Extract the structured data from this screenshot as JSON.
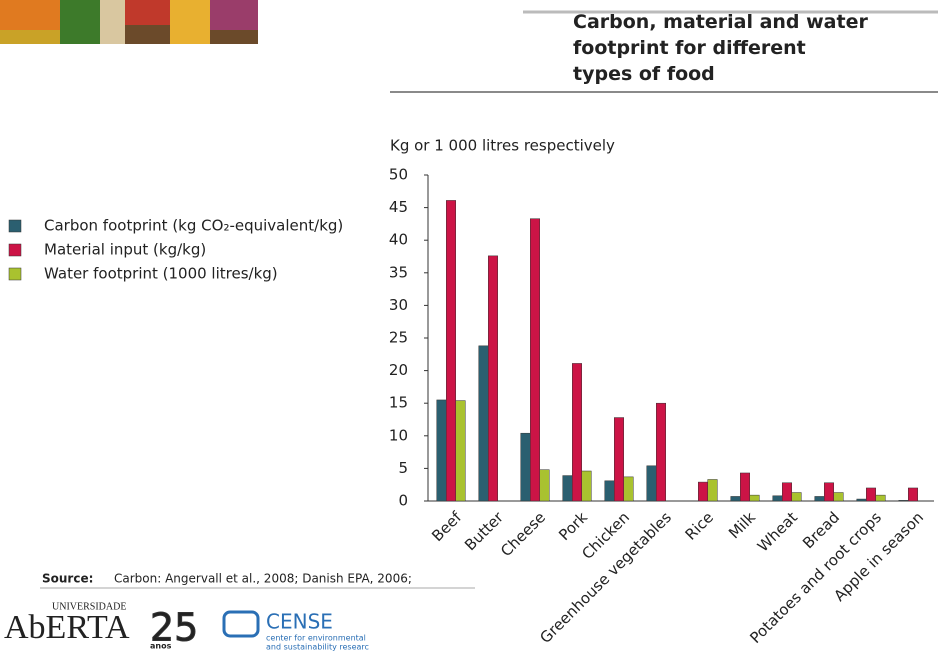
{
  "chart_data": {
    "type": "bar",
    "title": "Carbon, material and water footprint for different types of food",
    "y_label": "Kg or 1 000 litres respectively",
    "categories": [
      "Beef",
      "Butter",
      "Cheese",
      "Pork",
      "Chicken",
      "Greenhouse vegetables",
      "Rice",
      "Milk",
      "Wheat",
      "Bread",
      "Potatoes and root crops",
      "Apple in season"
    ],
    "series": [
      {
        "name": "Carbon footprint (kg CO₂-equivalent/kg)",
        "color": "#2b5f70",
        "values": [
          15.5,
          23.8,
          10.4,
          3.9,
          3.1,
          5.4,
          null,
          0.7,
          0.8,
          0.7,
          0.3,
          0.1
        ]
      },
      {
        "name": "Material input (kg/kg)",
        "color": "#cc1446",
        "values": [
          46.1,
          37.6,
          43.3,
          21.1,
          12.8,
          15.0,
          2.9,
          4.3,
          2.8,
          2.8,
          2.0,
          2.0
        ]
      },
      {
        "name": "Water footprint (1000 litres/kg)",
        "color": "#a9c22f",
        "values": [
          15.4,
          null,
          4.8,
          4.6,
          3.7,
          null,
          3.3,
          0.9,
          1.3,
          1.3,
          0.9,
          null
        ]
      }
    ],
    "ylim": [
      0,
      50
    ],
    "yticks": [
      0,
      5,
      10,
      15,
      20,
      25,
      30,
      35,
      40,
      45,
      50
    ],
    "grid": false
  },
  "slide": {
    "source_label": "Source:",
    "source_text": "Carbon: Angervall et al., 2008; Danish EPA, 2006;",
    "logo_university": "UNIVERSIDADE",
    "logo_name": "AbERTA",
    "logo_years": "25",
    "logo_years_word": "anos",
    "logo_cense": "CENSE",
    "logo_cense_line1": "center for environmental",
    "logo_cense_line2": "and sustainability researc"
  }
}
